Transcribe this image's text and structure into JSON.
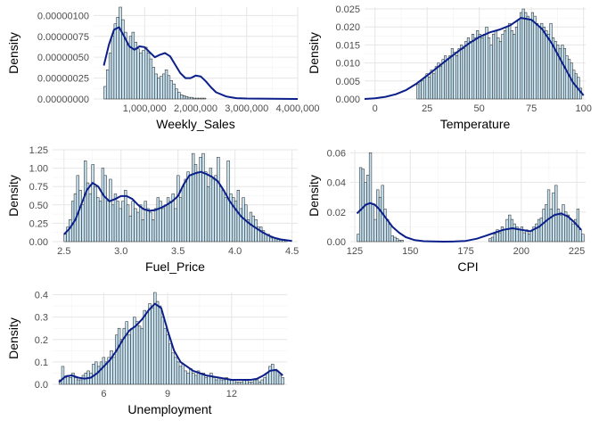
{
  "colors": {
    "bar_fill": "#c6e2f0",
    "bar_stroke": "#1a1a1a",
    "density_line": "#0b1f8a",
    "grid_major": "#e6e6e6",
    "grid_minor": "#f2f2f2"
  },
  "chart_data": [
    {
      "type": "bar",
      "variable": "Weekly_Sales",
      "xlabel": "Weekly_Sales",
      "ylabel": "Density",
      "xlim": [
        0,
        4000000
      ],
      "ylim": [
        0,
        1.1e-06
      ],
      "xticks": [
        1000000,
        2000000,
        3000000,
        4000000
      ],
      "xtick_labels": [
        "1,000,000",
        "2,000,000",
        "3,000,000",
        "4,000,000"
      ],
      "yticks": [
        0,
        2.5e-07,
        5e-07,
        7.5e-07,
        1e-06
      ],
      "ytick_labels": [
        "0.00000000",
        "0.00000025",
        "0.00000050",
        "0.00000075",
        "0.00000100"
      ],
      "bins": {
        "start": 200000,
        "width": 50000
      },
      "histogram": [
        1.5e-07,
        3.5e-07,
        5.5e-07,
        7.5e-07,
        9e-07,
        9.8e-07,
        1.1e-06,
        9.5e-07,
        8e-07,
        6.5e-07,
        7.5e-07,
        8e-07,
        6.8e-07,
        6e-07,
        5.5e-07,
        5.8e-07,
        6.2e-07,
        5.5e-07,
        4.8e-07,
        3.8e-07,
        3e-07,
        2.5e-07,
        2.7e-07,
        3e-07,
        3.5e-07,
        2.8e-07,
        2.2e-07,
        1.8e-07,
        1.2e-07,
        8e-08,
        5e-08,
        4e-08,
        3e-08,
        2e-08,
        2e-08,
        1e-08,
        1e-08,
        1e-08,
        1e-08,
        1e-08
      ],
      "density": {
        "x": [
          200000,
          300000,
          400000,
          500000,
          600000,
          700000,
          800000,
          900000,
          1000000,
          1100000,
          1200000,
          1300000,
          1400000,
          1500000,
          1600000,
          1700000,
          1800000,
          1900000,
          2000000,
          2100000,
          2200000,
          2300000,
          2400000,
          2600000,
          2800000,
          3000000,
          3500000,
          4000000
        ],
        "y": [
          4e-07,
          6.5e-07,
          8.3e-07,
          8.6e-07,
          7.5e-07,
          6.3e-07,
          5.9e-07,
          6.3e-07,
          6.2e-07,
          5.6e-07,
          5e-07,
          5.3e-07,
          5.5e-07,
          5.1e-07,
          4.1e-07,
          3.1e-07,
          2.5e-07,
          2.5e-07,
          2.8e-07,
          2.7e-07,
          2.1e-07,
          1.4e-07,
          8e-08,
          3e-08,
          1e-08,
          5e-09,
          2e-09,
          0.0
        ]
      }
    },
    {
      "type": "bar",
      "variable": "Temperature",
      "xlabel": "Temperature",
      "ylabel": "Density",
      "xlim": [
        -5,
        101
      ],
      "ylim": [
        0,
        0.0255
      ],
      "xticks": [
        0,
        25,
        50,
        75,
        100
      ],
      "xtick_labels": [
        "0",
        "25",
        "50",
        "75",
        "100"
      ],
      "yticks": [
        0,
        0.005,
        0.01,
        0.015,
        0.02,
        0.025
      ],
      "ytick_labels": [
        "0.000",
        "0.005",
        "0.010",
        "0.015",
        "0.020",
        "0.025"
      ],
      "bins": {
        "start": 20,
        "width": 1.1
      },
      "histogram": [
        0.004,
        0.005,
        0.005,
        0.006,
        0.007,
        0.006,
        0.008,
        0.007,
        0.009,
        0.01,
        0.009,
        0.011,
        0.012,
        0.011,
        0.012,
        0.014,
        0.013,
        0.012,
        0.014,
        0.015,
        0.014,
        0.016,
        0.017,
        0.016,
        0.018,
        0.017,
        0.019,
        0.018,
        0.017,
        0.018,
        0.02,
        0.017,
        0.015,
        0.018,
        0.019,
        0.017,
        0.016,
        0.018,
        0.019,
        0.02,
        0.021,
        0.019,
        0.018,
        0.02,
        0.022,
        0.024,
        0.025,
        0.024,
        0.023,
        0.022,
        0.024,
        0.023,
        0.021,
        0.02,
        0.021,
        0.02,
        0.019,
        0.018,
        0.021,
        0.017,
        0.016,
        0.015,
        0.014,
        0.015,
        0.014,
        0.012,
        0.011,
        0.01,
        0.008,
        0.007,
        0.006,
        0.003
      ],
      "density": {
        "x": [
          -5,
          0,
          5,
          10,
          15,
          20,
          25,
          30,
          35,
          40,
          45,
          50,
          55,
          60,
          65,
          70,
          75,
          80,
          85,
          90,
          95,
          100
        ],
        "y": [
          0.0,
          0.0002,
          0.0006,
          0.0013,
          0.0025,
          0.0043,
          0.0065,
          0.0088,
          0.0111,
          0.0133,
          0.0154,
          0.0172,
          0.0185,
          0.0193,
          0.0205,
          0.0225,
          0.022,
          0.0195,
          0.0152,
          0.0098,
          0.0045,
          0.001
        ]
      }
    },
    {
      "type": "bar",
      "variable": "Fuel_Price",
      "xlabel": "Fuel_Price",
      "ylabel": "Density",
      "xlim": [
        2.4,
        4.55
      ],
      "ylim": [
        0,
        1.25
      ],
      "xticks": [
        2.5,
        3.0,
        3.5,
        4.0,
        4.5
      ],
      "xtick_labels": [
        "2.5",
        "3.0",
        "3.5",
        "4.0",
        "4.5"
      ],
      "yticks": [
        0,
        0.25,
        0.5,
        0.75,
        1.0,
        1.25
      ],
      "ytick_labels": [
        "0.00",
        "0.25",
        "0.50",
        "0.75",
        "1.00",
        "1.25"
      ],
      "bins": {
        "start": 2.5,
        "width": 0.022
      },
      "histogram": [
        0.1,
        0.2,
        0.3,
        0.55,
        0.65,
        0.9,
        0.7,
        0.5,
        1.1,
        0.8,
        0.65,
        1.05,
        0.75,
        0.6,
        0.55,
        1.0,
        0.9,
        0.55,
        0.85,
        0.5,
        0.65,
        0.55,
        0.45,
        0.55,
        0.7,
        0.5,
        0.35,
        0.55,
        0.45,
        0.4,
        0.5,
        0.3,
        0.55,
        0.45,
        0.4,
        0.3,
        0.45,
        0.6,
        0.55,
        0.45,
        0.5,
        0.6,
        0.55,
        0.65,
        0.45,
        0.9,
        0.6,
        0.75,
        0.85,
        0.95,
        0.9,
        1.2,
        1.05,
        0.95,
        1.15,
        1.2,
        0.95,
        0.75,
        1.0,
        0.85,
        0.9,
        1.15,
        0.75,
        0.7,
        0.6,
        1.1,
        0.65,
        0.6,
        0.55,
        0.7,
        0.45,
        0.6,
        0.5,
        0.3,
        0.4,
        0.35,
        0.3,
        0.2,
        0.2,
        0.15,
        0.1,
        0.1,
        0.05,
        0.05,
        0.05,
        0.03,
        0.02,
        0.03,
        0.02
      ],
      "density": {
        "x": [
          2.5,
          2.55,
          2.6,
          2.65,
          2.7,
          2.75,
          2.8,
          2.85,
          2.9,
          2.95,
          3.0,
          3.05,
          3.1,
          3.15,
          3.2,
          3.25,
          3.3,
          3.35,
          3.4,
          3.45,
          3.5,
          3.55,
          3.6,
          3.65,
          3.7,
          3.75,
          3.8,
          3.85,
          3.9,
          3.95,
          4.0,
          4.05,
          4.1,
          4.15,
          4.2,
          4.25,
          4.3,
          4.35,
          4.4,
          4.45,
          4.5
        ],
        "y": [
          0.1,
          0.18,
          0.3,
          0.5,
          0.7,
          0.8,
          0.75,
          0.62,
          0.55,
          0.58,
          0.62,
          0.62,
          0.58,
          0.5,
          0.44,
          0.42,
          0.43,
          0.46,
          0.5,
          0.55,
          0.62,
          0.78,
          0.9,
          0.93,
          0.95,
          0.92,
          0.88,
          0.82,
          0.7,
          0.56,
          0.45,
          0.35,
          0.28,
          0.22,
          0.17,
          0.12,
          0.08,
          0.05,
          0.03,
          0.02,
          0.01
        ]
      }
    },
    {
      "type": "bar",
      "variable": "CPI",
      "xlabel": "CPI",
      "ylabel": "Density",
      "xlim": [
        123,
        229
      ],
      "ylim": [
        0,
        0.062
      ],
      "xticks": [
        125,
        150,
        175,
        200,
        225
      ],
      "xtick_labels": [
        "125",
        "150",
        "175",
        "200",
        "225"
      ],
      "yticks": [
        0,
        0.02,
        0.04,
        0.06
      ],
      "ytick_labels": [
        "0.00",
        "0.02",
        "0.04",
        "0.06"
      ],
      "bins": {
        "start": 126,
        "width": 1.1
      },
      "histogram": [
        0.005,
        0.05,
        0.049,
        0.04,
        0.045,
        0.06,
        0.025,
        0.015,
        0.035,
        0.03,
        0.038,
        0.022,
        0.015,
        0.012,
        0.004,
        0.003,
        0.002,
        0.001,
        0.001,
        0.0,
        0.0,
        0.0,
        0.0,
        0.0,
        0.0,
        0.0,
        0.0,
        0.0,
        0.0,
        0.0,
        0.0,
        0.0,
        0.0,
        0.0,
        0.0,
        0.0,
        0.0,
        0.0,
        0.0,
        0.0,
        0.0,
        0.0,
        0.0,
        0.0,
        0.0,
        0.0,
        0.0,
        0.0,
        0.0,
        0.0,
        0.0,
        0.0,
        0.0,
        0.0,
        0.002,
        0.003,
        0.005,
        0.008,
        0.006,
        0.01,
        0.008,
        0.015,
        0.018,
        0.015,
        0.012,
        0.01,
        0.008,
        0.01,
        0.006,
        0.008,
        0.005,
        0.007,
        0.01,
        0.012,
        0.015,
        0.016,
        0.022,
        0.025,
        0.035,
        0.022,
        0.033,
        0.038,
        0.022,
        0.018,
        0.025,
        0.02,
        0.018,
        0.015,
        0.012,
        0.015,
        0.022,
        0.008,
        0.005
      ],
      "density": {
        "x": [
          126,
          128,
          130,
          132,
          134,
          136,
          138,
          140,
          142,
          145,
          148,
          152,
          156,
          160,
          165,
          170,
          175,
          180,
          184,
          188,
          192,
          196,
          200,
          204,
          208,
          212,
          215,
          218,
          221,
          224,
          227
        ],
        "y": [
          0.019,
          0.022,
          0.025,
          0.026,
          0.025,
          0.022,
          0.018,
          0.014,
          0.01,
          0.006,
          0.003,
          0.001,
          0.0003,
          0.0001,
          0.0,
          0.0001,
          0.0005,
          0.002,
          0.004,
          0.006,
          0.008,
          0.009,
          0.008,
          0.007,
          0.01,
          0.015,
          0.018,
          0.019,
          0.017,
          0.013,
          0.008
        ]
      }
    },
    {
      "type": "bar",
      "variable": "Unemployment",
      "xlabel": "Unemployment",
      "ylabel": "Density",
      "xlim": [
        3.6,
        14.6
      ],
      "ylim": [
        0,
        0.41
      ],
      "xticks": [
        6,
        9,
        12
      ],
      "xtick_labels": [
        "6",
        "9",
        "12"
      ],
      "yticks": [
        0,
        0.1,
        0.2,
        0.3,
        0.4
      ],
      "ytick_labels": [
        "0.0",
        "0.1",
        "0.2",
        "0.3",
        "0.4"
      ],
      "bins": {
        "start": 3.9,
        "width": 0.12
      },
      "histogram": [
        0.02,
        0.08,
        0.03,
        0.04,
        0.03,
        0.05,
        0.03,
        0.02,
        0.02,
        0.04,
        0.05,
        0.06,
        0.05,
        0.09,
        0.1,
        0.08,
        0.1,
        0.12,
        0.1,
        0.12,
        0.15,
        0.12,
        0.22,
        0.25,
        0.2,
        0.25,
        0.28,
        0.22,
        0.25,
        0.3,
        0.28,
        0.26,
        0.25,
        0.33,
        0.32,
        0.36,
        0.34,
        0.41,
        0.37,
        0.35,
        0.3,
        0.25,
        0.22,
        0.18,
        0.14,
        0.12,
        0.1,
        0.08,
        0.09,
        0.06,
        0.05,
        0.07,
        0.05,
        0.04,
        0.06,
        0.05,
        0.05,
        0.03,
        0.04,
        0.05,
        0.03,
        0.02,
        0.03,
        0.02,
        0.02,
        0.03,
        0.02,
        0.02,
        0.02,
        0.01,
        0.01,
        0.01,
        0.02,
        0.02,
        0.01,
        0.01,
        0.02,
        0.02,
        0.01,
        0.02,
        0.03,
        0.05,
        0.08,
        0.09,
        0.06,
        0.06,
        0.04,
        0.03
      ],
      "density": {
        "x": [
          3.9,
          4.2,
          4.5,
          4.8,
          5.1,
          5.4,
          5.7,
          6.0,
          6.3,
          6.6,
          6.9,
          7.2,
          7.5,
          7.8,
          8.1,
          8.4,
          8.7,
          9.0,
          9.3,
          9.6,
          9.9,
          10.2,
          10.5,
          10.8,
          11.1,
          11.4,
          11.7,
          12.0,
          12.3,
          12.6,
          12.9,
          13.2,
          13.5,
          13.8,
          14.1,
          14.4
        ],
        "y": [
          0.01,
          0.035,
          0.04,
          0.03,
          0.025,
          0.03,
          0.05,
          0.08,
          0.11,
          0.15,
          0.2,
          0.24,
          0.26,
          0.29,
          0.33,
          0.36,
          0.34,
          0.24,
          0.15,
          0.1,
          0.08,
          0.06,
          0.05,
          0.04,
          0.035,
          0.03,
          0.025,
          0.02,
          0.02,
          0.02,
          0.02,
          0.025,
          0.04,
          0.06,
          0.065,
          0.04
        ]
      }
    }
  ]
}
